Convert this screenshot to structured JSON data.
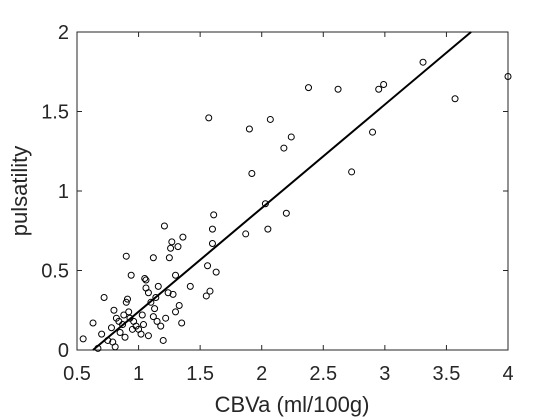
{
  "chart_data": {
    "type": "scatter",
    "title": "",
    "xlabel": "CBVa (ml/100g)",
    "ylabel": "pulsatility",
    "xlim": [
      0.5,
      4
    ],
    "ylim": [
      0,
      2
    ],
    "x_ticks": [
      0.5,
      1,
      1.5,
      2,
      2.5,
      3,
      3.5,
      4
    ],
    "x_tick_labels": [
      "0.5",
      "1",
      "1.5",
      "2",
      "2.5",
      "3",
      "3.5",
      "4"
    ],
    "y_ticks": [
      0,
      0.5,
      1,
      1.5,
      2
    ],
    "y_tick_labels": [
      "0",
      "0.5",
      "1",
      "1.5",
      "2"
    ],
    "grid": false,
    "marker": "open circle",
    "marker_color": "#000000",
    "fit_line": {
      "type": "linear",
      "x": [
        0.63,
        3.7
      ],
      "y": [
        0.0,
        2.0
      ],
      "color": "#000000"
    },
    "points": [
      [
        0.55,
        0.07
      ],
      [
        0.63,
        0.17
      ],
      [
        0.67,
        0.01
      ],
      [
        0.7,
        0.1
      ],
      [
        0.72,
        0.33
      ],
      [
        0.75,
        0.06
      ],
      [
        0.78,
        0.14
      ],
      [
        0.79,
        0.05
      ],
      [
        0.8,
        0.25
      ],
      [
        0.81,
        0.02
      ],
      [
        0.82,
        0.2
      ],
      [
        0.84,
        0.18
      ],
      [
        0.85,
        0.11
      ],
      [
        0.87,
        0.16
      ],
      [
        0.88,
        0.22
      ],
      [
        0.89,
        0.08
      ],
      [
        0.9,
        0.3
      ],
      [
        0.91,
        0.32
      ],
      [
        0.9,
        0.59
      ],
      [
        0.92,
        0.24
      ],
      [
        0.93,
        0.2
      ],
      [
        0.94,
        0.47
      ],
      [
        0.95,
        0.13
      ],
      [
        0.96,
        0.18
      ],
      [
        0.98,
        0.15
      ],
      [
        1.0,
        0.13
      ],
      [
        1.02,
        0.1
      ],
      [
        1.03,
        0.22
      ],
      [
        1.04,
        0.16
      ],
      [
        1.05,
        0.45
      ],
      [
        1.06,
        0.44
      ],
      [
        1.06,
        0.39
      ],
      [
        1.08,
        0.09
      ],
      [
        1.08,
        0.36
      ],
      [
        1.1,
        0.3
      ],
      [
        1.12,
        0.21
      ],
      [
        1.12,
        0.58
      ],
      [
        1.13,
        0.26
      ],
      [
        1.14,
        0.33
      ],
      [
        1.15,
        0.18
      ],
      [
        1.16,
        0.4
      ],
      [
        1.18,
        0.15
      ],
      [
        1.2,
        0.06
      ],
      [
        1.21,
        0.78
      ],
      [
        1.22,
        0.2
      ],
      [
        1.24,
        0.36
      ],
      [
        1.25,
        0.58
      ],
      [
        1.26,
        0.64
      ],
      [
        1.27,
        0.68
      ],
      [
        1.28,
        0.35
      ],
      [
        1.3,
        0.47
      ],
      [
        1.3,
        0.24
      ],
      [
        1.32,
        0.65
      ],
      [
        1.33,
        0.28
      ],
      [
        1.35,
        0.17
      ],
      [
        1.36,
        0.71
      ],
      [
        1.42,
        0.4
      ],
      [
        1.55,
        0.34
      ],
      [
        1.56,
        0.53
      ],
      [
        1.57,
        1.46
      ],
      [
        1.58,
        0.37
      ],
      [
        1.6,
        0.76
      ],
      [
        1.6,
        0.67
      ],
      [
        1.61,
        0.85
      ],
      [
        1.63,
        0.49
      ],
      [
        1.87,
        0.73
      ],
      [
        1.9,
        1.39
      ],
      [
        1.92,
        1.11
      ],
      [
        2.03,
        0.92
      ],
      [
        2.05,
        0.76
      ],
      [
        2.07,
        1.45
      ],
      [
        2.18,
        1.27
      ],
      [
        2.2,
        0.86
      ],
      [
        2.24,
        1.34
      ],
      [
        2.38,
        1.65
      ],
      [
        2.62,
        1.64
      ],
      [
        2.73,
        1.12
      ],
      [
        2.9,
        1.37
      ],
      [
        2.95,
        1.64
      ],
      [
        2.99,
        1.67
      ],
      [
        3.31,
        1.81
      ],
      [
        3.57,
        1.58
      ],
      [
        4.0,
        1.72
      ]
    ]
  }
}
